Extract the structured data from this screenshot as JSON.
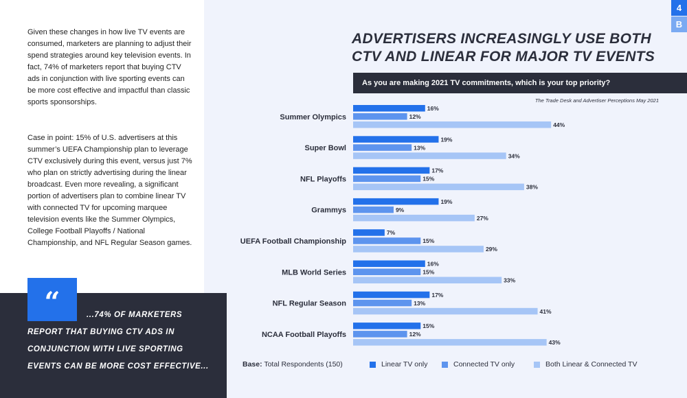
{
  "left_panel": {
    "paragraph1": "Given these changes in how live TV events are consumed, marketers are planning to adjust their spend strategies around key television events. In fact, 74% of marketers report that buying CTV ads in conjunction with live sporting events can be more cost effective and impactful than classic sports sponsorships.",
    "paragraph2": "Case in point: 15% of U.S. advertisers at this summer’s UEFA Championship plan to leverage CTV exclusively during this event, versus just 7% who plan on strictly advertising during the linear broadcast. Even more revealing, a significant portion of advertisers plan to combine linear TV with connected TV for upcoming marquee television events like the Summer Olympics, College Football Playoffs / National Championship, and NFL Regular Season games.",
    "quote_mark": "“",
    "quote": "...74% OF MARKETERS REPORT THAT BUYING CTV ADS IN CONJUNCTION WITH LIVE SPORTING EVENTS CAN BE MORE COST EFFECTIVE..."
  },
  "page_badges": [
    "4",
    "B"
  ],
  "chart_data": {
    "type": "bar",
    "orientation": "horizontal",
    "title": "ADVERTISERS INCREASINGLY USE BOTH CTV AND LINEAR FOR MAJOR TV EVENTS",
    "question": "As you are making 2021 TV commitments, which is your top priority?",
    "source": "The Trade Desk and Advertiser Perceptions May 2021",
    "categories": [
      "Summer Olympics",
      "Super Bowl",
      "NFL Playoffs",
      "Grammys",
      "UEFA Football Championship",
      "MLB World Series",
      "NFL Regular Season",
      "NCAA Football Playoffs"
    ],
    "series": [
      {
        "name": "Linear TV only",
        "color": "#2371ea",
        "values": [
          16,
          19,
          17,
          19,
          7,
          16,
          17,
          15
        ]
      },
      {
        "name": "Connected TV only",
        "color": "#5d94ee",
        "values": [
          12,
          13,
          15,
          9,
          15,
          15,
          13,
          12
        ]
      },
      {
        "name": "Both Linear & Connected TV",
        "color": "#a6c5f6",
        "values": [
          44,
          34,
          38,
          27,
          29,
          33,
          41,
          43
        ]
      }
    ],
    "value_suffix": "%",
    "xlim": [
      0,
      50
    ],
    "base_label": "Base:",
    "base_text": "Total Respondents (150)"
  }
}
